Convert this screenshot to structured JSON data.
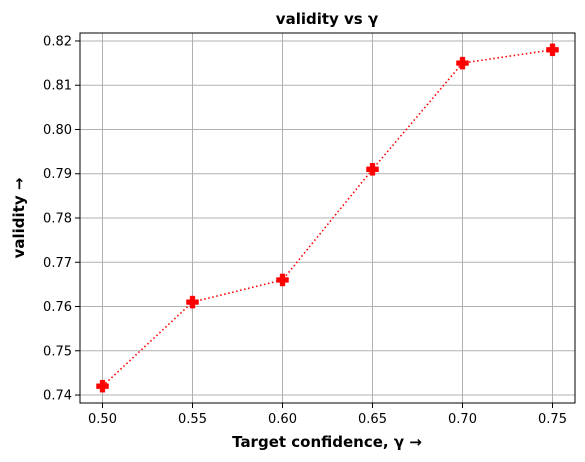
{
  "chart_data": {
    "type": "line",
    "title": "validity vs γ",
    "xlabel": "Target confidence, γ →",
    "ylabel": "validity →",
    "x": [
      0.5,
      0.55,
      0.6,
      0.65,
      0.7,
      0.75
    ],
    "series": [
      {
        "values": [
          0.742,
          0.761,
          0.766,
          0.791,
          0.815,
          0.818
        ]
      }
    ],
    "xticks": [
      "0.50",
      "0.55",
      "0.60",
      "0.65",
      "0.70",
      "0.75"
    ],
    "yticks": [
      "0.74",
      "0.75",
      "0.76",
      "0.77",
      "0.78",
      "0.79",
      "0.80",
      "0.81",
      "0.82"
    ],
    "xlim": [
      0.4875,
      0.7625
    ],
    "ylim": [
      0.7382,
      0.8218
    ],
    "grid": true,
    "line_color": "#ff0000",
    "line_style": "dotted",
    "marker": "plus-filled"
  }
}
